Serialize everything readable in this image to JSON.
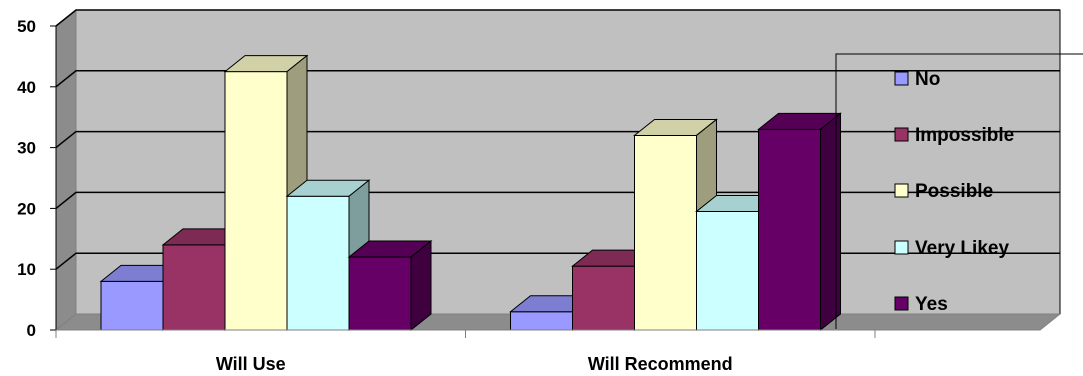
{
  "chart_data": {
    "type": "bar",
    "categories": [
      "Will Use",
      "Will Recommend"
    ],
    "series": [
      {
        "name": "No",
        "values": [
          8,
          3
        ],
        "color": "#9999FF"
      },
      {
        "name": "Impossible",
        "values": [
          14,
          10.5
        ],
        "color": "#993366"
      },
      {
        "name": "Possible",
        "values": [
          42.5,
          32
        ],
        "color": "#FFFFCC"
      },
      {
        "name": "Very Likey",
        "values": [
          22,
          19.5
        ],
        "color": "#CCFFFF"
      },
      {
        "name": "Yes",
        "values": [
          12,
          33
        ],
        "color": "#660066"
      }
    ],
    "ylim": [
      0,
      50
    ],
    "yticks": [
      "0",
      "10",
      "20",
      "30",
      "40",
      "50"
    ],
    "grid": true,
    "legend_position": "right",
    "plot_background": "#C0C0C0"
  }
}
